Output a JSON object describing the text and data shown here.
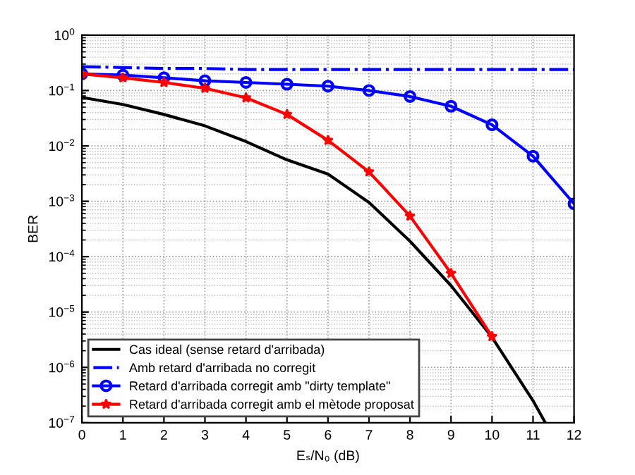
{
  "chart_data": {
    "type": "line",
    "xlabel": "Eₛ/N₀ (dB)",
    "ylabel": "BER",
    "log": "y",
    "grid": true,
    "legend": "lower left",
    "xlim": [
      0,
      12
    ],
    "xticks": [
      0,
      1,
      2,
      3,
      4,
      5,
      6,
      7,
      8,
      9,
      10,
      11,
      12
    ],
    "ylim": [
      1e-07,
      1
    ],
    "yticks": [
      {
        "value": 1e-07,
        "label": "10$^{−7}$"
      },
      {
        "value": 1e-06,
        "label": "10$^{−6}$"
      },
      {
        "value": 1e-05,
        "label": "10$^{−5}$"
      },
      {
        "value": 0.0001,
        "label": "10$^{−4}$"
      },
      {
        "value": 0.001,
        "label": "10$^{−3}$"
      },
      {
        "value": 0.01,
        "label": "10$^{−2}$"
      },
      {
        "value": 0.1,
        "label": "10$^{−1}$"
      },
      {
        "value": 1,
        "label": "10$^{0}$"
      }
    ],
    "series": [
      {
        "name": "Cas ideal (sense retard d'arribada)",
        "color": "#000000",
        "marker": "none",
        "line_style": "solid",
        "x": [
          0,
          1,
          2,
          3,
          4,
          5,
          6,
          7,
          8,
          9,
          10,
          11,
          11.3
        ],
        "values": [
          0.075,
          0.056,
          0.037,
          0.023,
          0.012,
          0.0056,
          0.0031,
          0.00095,
          0.00019,
          3e-05,
          3.5e-06,
          2.5e-07,
          1e-07
        ]
      },
      {
        "name": "Amb retard d'arribada no corregit",
        "color": "#0000ff",
        "marker": "none",
        "line_style": "dashed",
        "x": [
          0,
          1,
          2,
          3,
          4,
          5,
          6,
          7,
          8,
          9,
          10,
          11,
          12
        ],
        "values": [
          0.27,
          0.26,
          0.25,
          0.25,
          0.24,
          0.24,
          0.24,
          0.24,
          0.24,
          0.24,
          0.24,
          0.24,
          0.24
        ]
      },
      {
        "name": "Retard d'arribada corregit amb \"dirty template\"",
        "color": "#0000ff",
        "marker": "circle",
        "line_style": "solid",
        "x": [
          0,
          1,
          2,
          3,
          4,
          5,
          6,
          7,
          8,
          9,
          10,
          11,
          12
        ],
        "values": [
          0.2,
          0.19,
          0.17,
          0.15,
          0.14,
          0.13,
          0.12,
          0.1,
          0.078,
          0.052,
          0.024,
          0.0065,
          0.0009
        ]
      },
      {
        "name": "Retard d'arribada corregit amb el mètode proposat",
        "color": "#ff0000",
        "marker": "star",
        "line_style": "solid",
        "x": [
          0,
          1,
          2,
          3,
          4,
          5,
          6,
          7,
          8,
          9,
          10
        ],
        "values": [
          0.2,
          0.17,
          0.14,
          0.11,
          0.074,
          0.037,
          0.0126,
          0.0034,
          0.00054,
          5e-05,
          3.6e-06
        ]
      }
    ]
  }
}
